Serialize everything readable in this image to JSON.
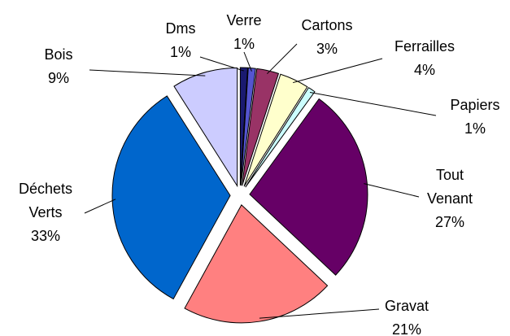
{
  "chart_data": {
    "type": "pie",
    "categories": [
      "Dms",
      "Verre",
      "Cartons",
      "Ferrailles",
      "Papiers",
      "Tout Venant",
      "Gravat",
      "Déchets Verts",
      "Bois"
    ],
    "values": [
      1,
      1,
      3,
      4,
      1,
      27,
      21,
      33,
      9
    ],
    "value_labels": [
      "1%",
      "1%",
      "3%",
      "4%",
      "1%",
      "27%",
      "21%",
      "33%",
      "9%"
    ],
    "colors": [
      "#1a1a70",
      "#5555d0",
      "#993366",
      "#ffffcc",
      "#ccffff",
      "#660066",
      "#ff8080",
      "#0066cc",
      "#ccccff"
    ]
  }
}
